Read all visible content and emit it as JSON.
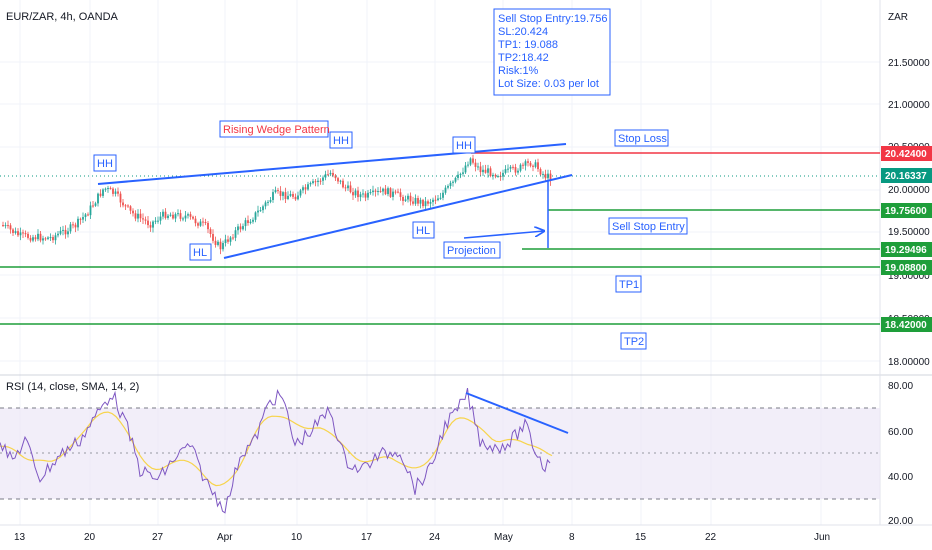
{
  "symbol_title": "EUR/ZAR, 4h, OANDA",
  "currency": "ZAR",
  "colors": {
    "up": "#26a69a",
    "down": "#ef5350",
    "annotation": "#2962ff",
    "stop_loss": "#f23645",
    "level": "#1e9e3a",
    "price_tag": "#089981",
    "rsi_line": "#7e57c2",
    "rsi_ma": "#f7d44c",
    "rsi_band": "#ede7f6"
  },
  "price_axis": [
    "21.50000",
    "21.00000",
    "20.50000",
    "20.00000",
    "19.50000",
    "19.00000",
    "18.50000",
    "18.00000"
  ],
  "rsi_axis": [
    "80.00",
    "60.00",
    "40.00",
    "20.00"
  ],
  "time_axis": [
    "13",
    "20",
    "27",
    "Apr",
    "10",
    "17",
    "24",
    "May",
    "8",
    "15",
    "22",
    "Jun"
  ],
  "trade_box": [
    "Sell Stop Entry:19.756",
    "SL:20.424",
    "TP1: 19.088",
    "TP2:18.42",
    "Risk:1%",
    "Lot Size: 0.03 per lot"
  ],
  "price_tags": [
    {
      "text": "20.42400",
      "kind": "stop_loss"
    },
    {
      "text": "20.16337",
      "kind": "current"
    },
    {
      "text": "19.75600",
      "kind": "level"
    },
    {
      "text": "19.29496",
      "kind": "level"
    },
    {
      "text": "19.08800",
      "kind": "level"
    },
    {
      "text": "18.42000",
      "kind": "level"
    }
  ],
  "labels": {
    "hh1": "HH",
    "hh2": "HH",
    "hh3": "HH",
    "hl1": "HL",
    "hl2": "HL",
    "pattern": "Rising Wedge Pattern",
    "stop_loss": "Stop Loss",
    "sell_stop_entry": "Sell Stop Entry",
    "projection": "Projection",
    "tp1": "TP1",
    "tp2": "TP2"
  },
  "rsi_title": "RSI (14, close, SMA, 14, 2)"
}
